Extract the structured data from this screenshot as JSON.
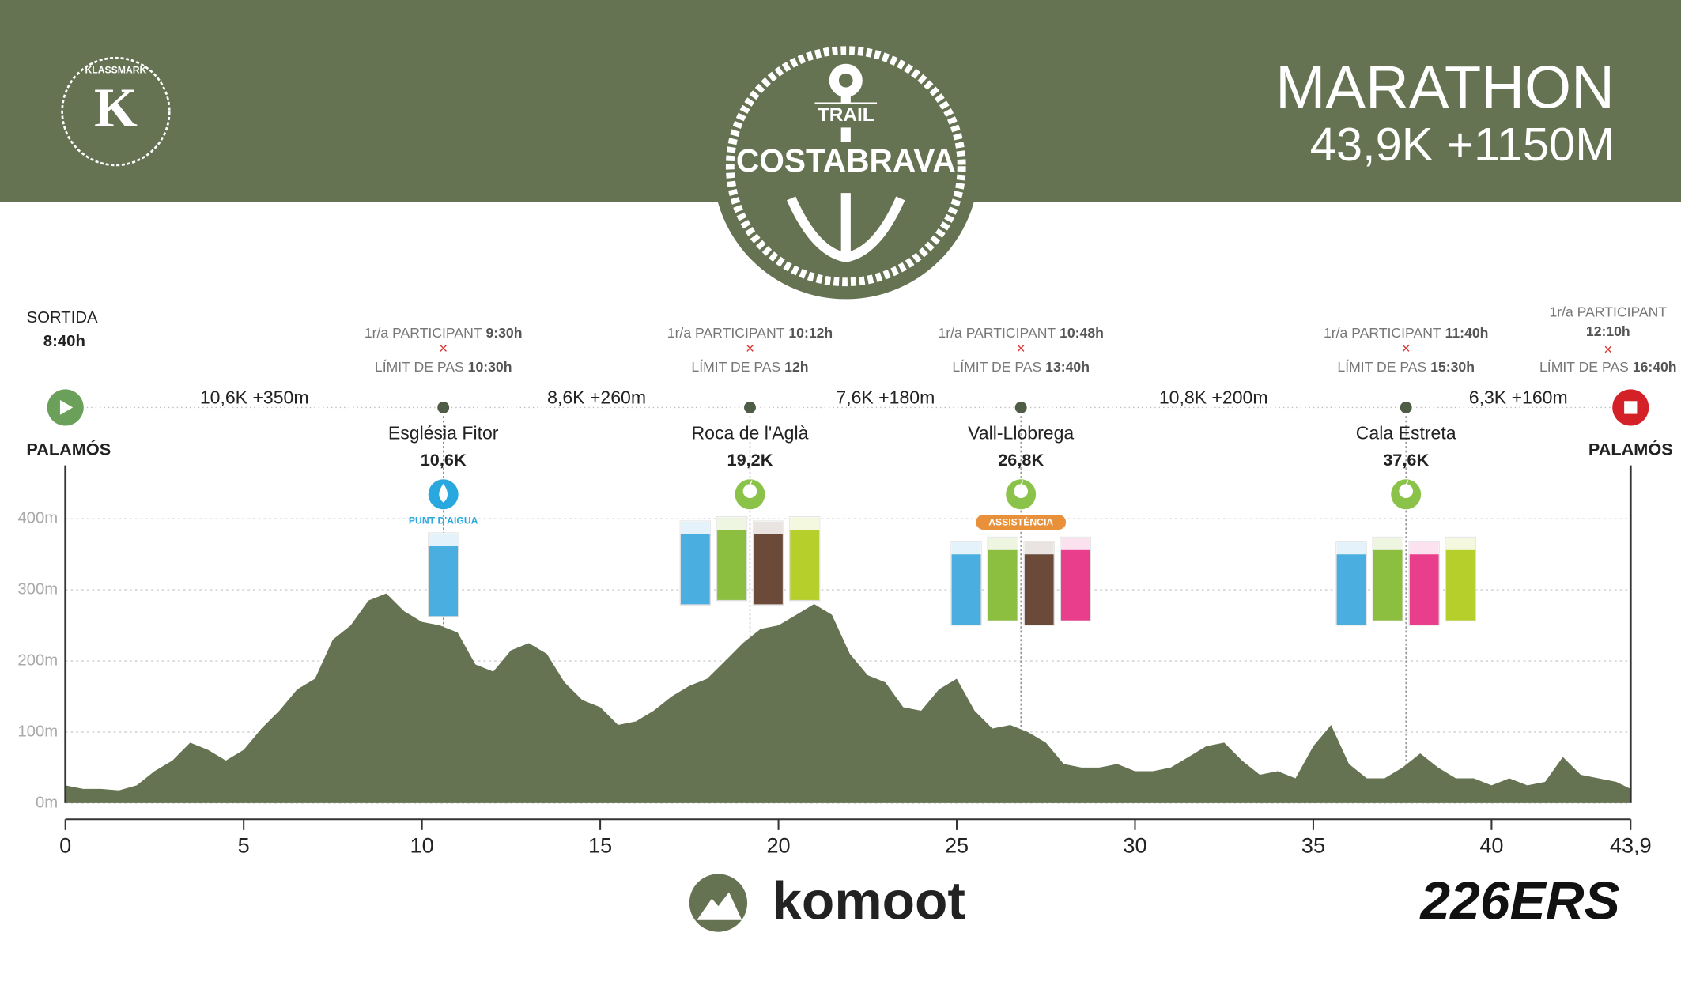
{
  "header": {
    "title": "MARATHON",
    "subtitle": "43,9K +1150M",
    "event_top": "TRAIL",
    "event_name": "COSTABRAVA",
    "brand": "KLASSMARK",
    "brand_letter": "K"
  },
  "start": {
    "label": "SORTIDA",
    "time": "8:40h",
    "place": "PALAMÓS"
  },
  "finish": {
    "first_label": "1r/a PARTICIPANT",
    "first_time": "12:10h",
    "limit_label": "LÍMIT DE PAS",
    "limit_time": "16:40h",
    "place": "PALAMÓS"
  },
  "checkpoints": [
    {
      "first_label": "1r/a PARTICIPANT",
      "first_time": "9:30h",
      "limit_label": "LÍMIT DE PAS",
      "limit_time": "10:30h",
      "name": "Església Fitor",
      "km": {
        "value": 10.6,
        "label": "10,6K"
      },
      "service": "PUNT D'AIGUA"
    },
    {
      "first_label": "1r/a PARTICIPANT",
      "first_time": "10:12h",
      "limit_label": "LÍMIT DE PAS",
      "limit_time": "12h",
      "name": "Roca de l'Aglà",
      "km": {
        "value": 19.2,
        "label": "19,2K"
      }
    },
    {
      "first_label": "1r/a PARTICIPANT",
      "first_time": "10:48h",
      "limit_label": "LÍMIT DE PAS",
      "limit_time": "13:40h",
      "name": "Vall-Llobrega",
      "km": {
        "value": 26.8,
        "label": "26,8K"
      },
      "service": "ASSISTÈNCIA"
    },
    {
      "first_label": "1r/a PARTICIPANT",
      "first_time": "11:40h",
      "limit_label": "LÍMIT DE PAS",
      "limit_time": "15:30h",
      "name": "Cala Estreta",
      "km": {
        "value": 37.6,
        "label": "37,6K"
      }
    }
  ],
  "segments": [
    "10,6K +350m",
    "8,6K +260m",
    "7,6K +180m",
    "10,8K +200m",
    "6,3K +160m"
  ],
  "chart_data": {
    "type": "area",
    "color": "#667352",
    "x": [
      0,
      0.5,
      1,
      1.5,
      2,
      2.5,
      3,
      3.5,
      4,
      4.5,
      5,
      5.5,
      6,
      6.5,
      7,
      7.5,
      8,
      8.5,
      9,
      9.5,
      10,
      10.5,
      11,
      11.5,
      12,
      12.5,
      13,
      13.5,
      14,
      14.5,
      15,
      15.5,
      16,
      16.5,
      17,
      17.5,
      18,
      18.5,
      19,
      19.5,
      20,
      20.5,
      21,
      21.5,
      22,
      22.5,
      23,
      23.5,
      24,
      24.5,
      25,
      25.5,
      26,
      26.5,
      27,
      27.5,
      28,
      28.5,
      29,
      29.5,
      30,
      30.5,
      31,
      31.5,
      32,
      32.5,
      33,
      33.5,
      34,
      34.5,
      35,
      35.5,
      36,
      36.5,
      37,
      37.5,
      38,
      38.5,
      39,
      39.5,
      40,
      40.5,
      41,
      41.5,
      42,
      42.5,
      43,
      43.5,
      43.9
    ],
    "values": [
      25,
      20,
      20,
      18,
      25,
      45,
      60,
      85,
      75,
      60,
      75,
      105,
      130,
      160,
      175,
      230,
      250,
      285,
      295,
      270,
      255,
      250,
      240,
      195,
      185,
      215,
      225,
      210,
      170,
      145,
      135,
      110,
      115,
      130,
      150,
      165,
      175,
      200,
      225,
      245,
      250,
      265,
      280,
      265,
      210,
      180,
      170,
      135,
      130,
      160,
      175,
      130,
      105,
      110,
      100,
      85,
      55,
      50,
      50,
      55,
      45,
      45,
      50,
      65,
      80,
      85,
      60,
      40,
      45,
      35,
      80,
      110,
      55,
      35,
      35,
      50,
      70,
      50,
      35,
      35,
      25,
      35,
      25,
      30,
      65,
      40,
      35,
      30,
      20
    ],
    "xlim": [
      0,
      43.9
    ],
    "ylim": [
      0,
      475
    ],
    "xticks": [
      0,
      5,
      10,
      15,
      20,
      25,
      30,
      35,
      40,
      {
        "value": 43.9,
        "label": "43,9"
      }
    ],
    "yticks": [
      {
        "value": 0,
        "label": "0m"
      },
      {
        "value": 100,
        "label": "100m"
      },
      {
        "value": 200,
        "label": "200m"
      },
      {
        "value": 300,
        "label": "300m"
      },
      {
        "value": 400,
        "label": "400m"
      }
    ],
    "grid": true
  },
  "footer": {
    "left": "komoot",
    "right": "226ERS"
  }
}
